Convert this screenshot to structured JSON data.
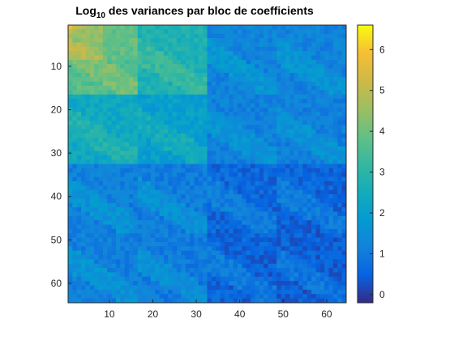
{
  "chart_data": {
    "type": "heatmap",
    "title": {
      "prefix": "Log",
      "subscript": "10",
      "suffix": " des variances par bloc de coefficients"
    },
    "xlabel": "",
    "ylabel": "",
    "x_range": [
      1,
      64
    ],
    "y_range": [
      1,
      64
    ],
    "y_direction": "reversed",
    "x_ticks": [
      10,
      20,
      30,
      40,
      50,
      60
    ],
    "y_ticks": [
      10,
      20,
      30,
      40,
      50,
      60
    ],
    "colorbar": {
      "range": [
        -0.2,
        6.6
      ],
      "ticks": [
        0,
        1,
        2,
        3,
        4,
        5,
        6
      ],
      "colormap": "parula"
    },
    "grid": false,
    "block_structure": {
      "description_levels": [
        {
          "rows": [
            1,
            8
          ],
          "cols": [
            1,
            8
          ],
          "mean": 4.6
        },
        {
          "rows": [
            1,
            8
          ],
          "cols": [
            9,
            16
          ],
          "mean": 4.0
        },
        {
          "rows": [
            9,
            16
          ],
          "cols": [
            1,
            16
          ],
          "mean": 3.8
        },
        {
          "rows": [
            1,
            16
          ],
          "cols": [
            17,
            32
          ],
          "mean": 2.9
        },
        {
          "rows": [
            17,
            32
          ],
          "cols": [
            1,
            16
          ],
          "mean": 2.5
        },
        {
          "rows": [
            17,
            32
          ],
          "cols": [
            17,
            32
          ],
          "mean": 2.2
        },
        {
          "rows": [
            1,
            32
          ],
          "cols": [
            33,
            64
          ],
          "mean": 1.4
        },
        {
          "rows": [
            33,
            64
          ],
          "cols": [
            1,
            32
          ],
          "mean": 1.3
        },
        {
          "rows": [
            33,
            64
          ],
          "cols": [
            33,
            64
          ],
          "mean": 0.9
        }
      ],
      "peak": {
        "row": 1,
        "col": 1,
        "value": 6.3
      }
    }
  }
}
